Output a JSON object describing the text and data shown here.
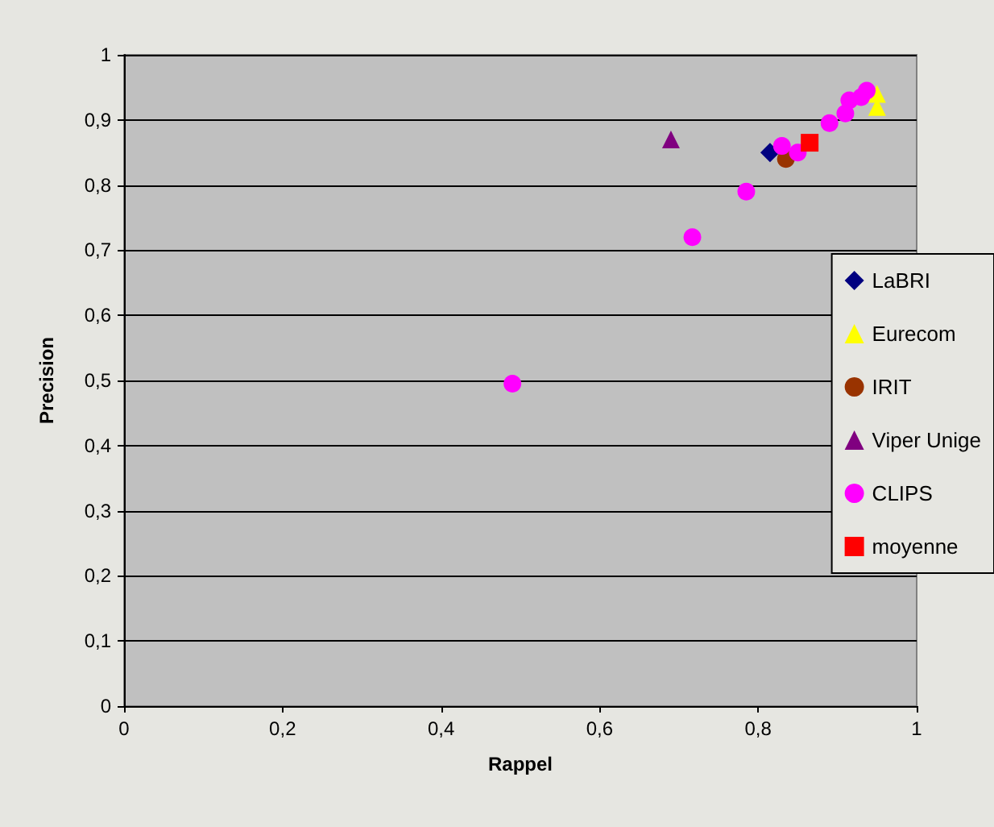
{
  "chart_data": {
    "type": "scatter",
    "xlabel": "Rappel",
    "ylabel": "Precision",
    "xlim": [
      0,
      1
    ],
    "xticks": [
      {
        "value": 0,
        "label": "0"
      },
      {
        "value": 0.2,
        "label": "0,2"
      },
      {
        "value": 0.4,
        "label": "0,4"
      },
      {
        "value": 0.6,
        "label": "0,6"
      },
      {
        "value": 0.8,
        "label": "0,8"
      },
      {
        "value": 1,
        "label": "1"
      }
    ],
    "ylim": [
      0,
      1
    ],
    "yticks": [
      {
        "value": 0,
        "label": "0"
      },
      {
        "value": 0.1,
        "label": "0,1"
      },
      {
        "value": 0.2,
        "label": "0,2"
      },
      {
        "value": 0.3,
        "label": "0,3"
      },
      {
        "value": 0.4,
        "label": "0,4"
      },
      {
        "value": 0.5,
        "label": "0,5"
      },
      {
        "value": 0.6,
        "label": "0,6"
      },
      {
        "value": 0.7,
        "label": "0,7"
      },
      {
        "value": 0.8,
        "label": "0,8"
      },
      {
        "value": 0.9,
        "label": "0,9"
      },
      {
        "value": 1,
        "label": "1"
      }
    ],
    "grid": "y",
    "legend": "right",
    "series": [
      {
        "name": "LaBRI",
        "color": "#000080",
        "marker": "diamond",
        "x": [
          0.815
        ],
        "values": [
          0.85
        ]
      },
      {
        "name": "Eurecom",
        "color": "#ffff00",
        "marker": "triangle",
        "x": [
          0.95,
          0.95
        ],
        "values": [
          0.94,
          0.92
        ]
      },
      {
        "name": "IRIT",
        "color": "#993300",
        "marker": "circle",
        "x": [
          0.835
        ],
        "values": [
          0.84
        ]
      },
      {
        "name": "Viper Unige",
        "color": "#800080",
        "marker": "triangle",
        "x": [
          0.69
        ],
        "values": [
          0.87
        ]
      },
      {
        "name": "CLIPS",
        "color": "#ff00ff",
        "marker": "circle",
        "x": [
          0.49,
          0.717,
          0.785,
          0.83,
          0.85,
          0.89,
          0.91,
          0.915,
          0.93,
          0.937
        ],
        "values": [
          0.495,
          0.72,
          0.79,
          0.86,
          0.85,
          0.895,
          0.91,
          0.93,
          0.935,
          0.945
        ]
      },
      {
        "name": "moyenne",
        "color": "#ff0000",
        "marker": "square",
        "x": [
          0.865
        ],
        "values": [
          0.865
        ]
      }
    ]
  }
}
